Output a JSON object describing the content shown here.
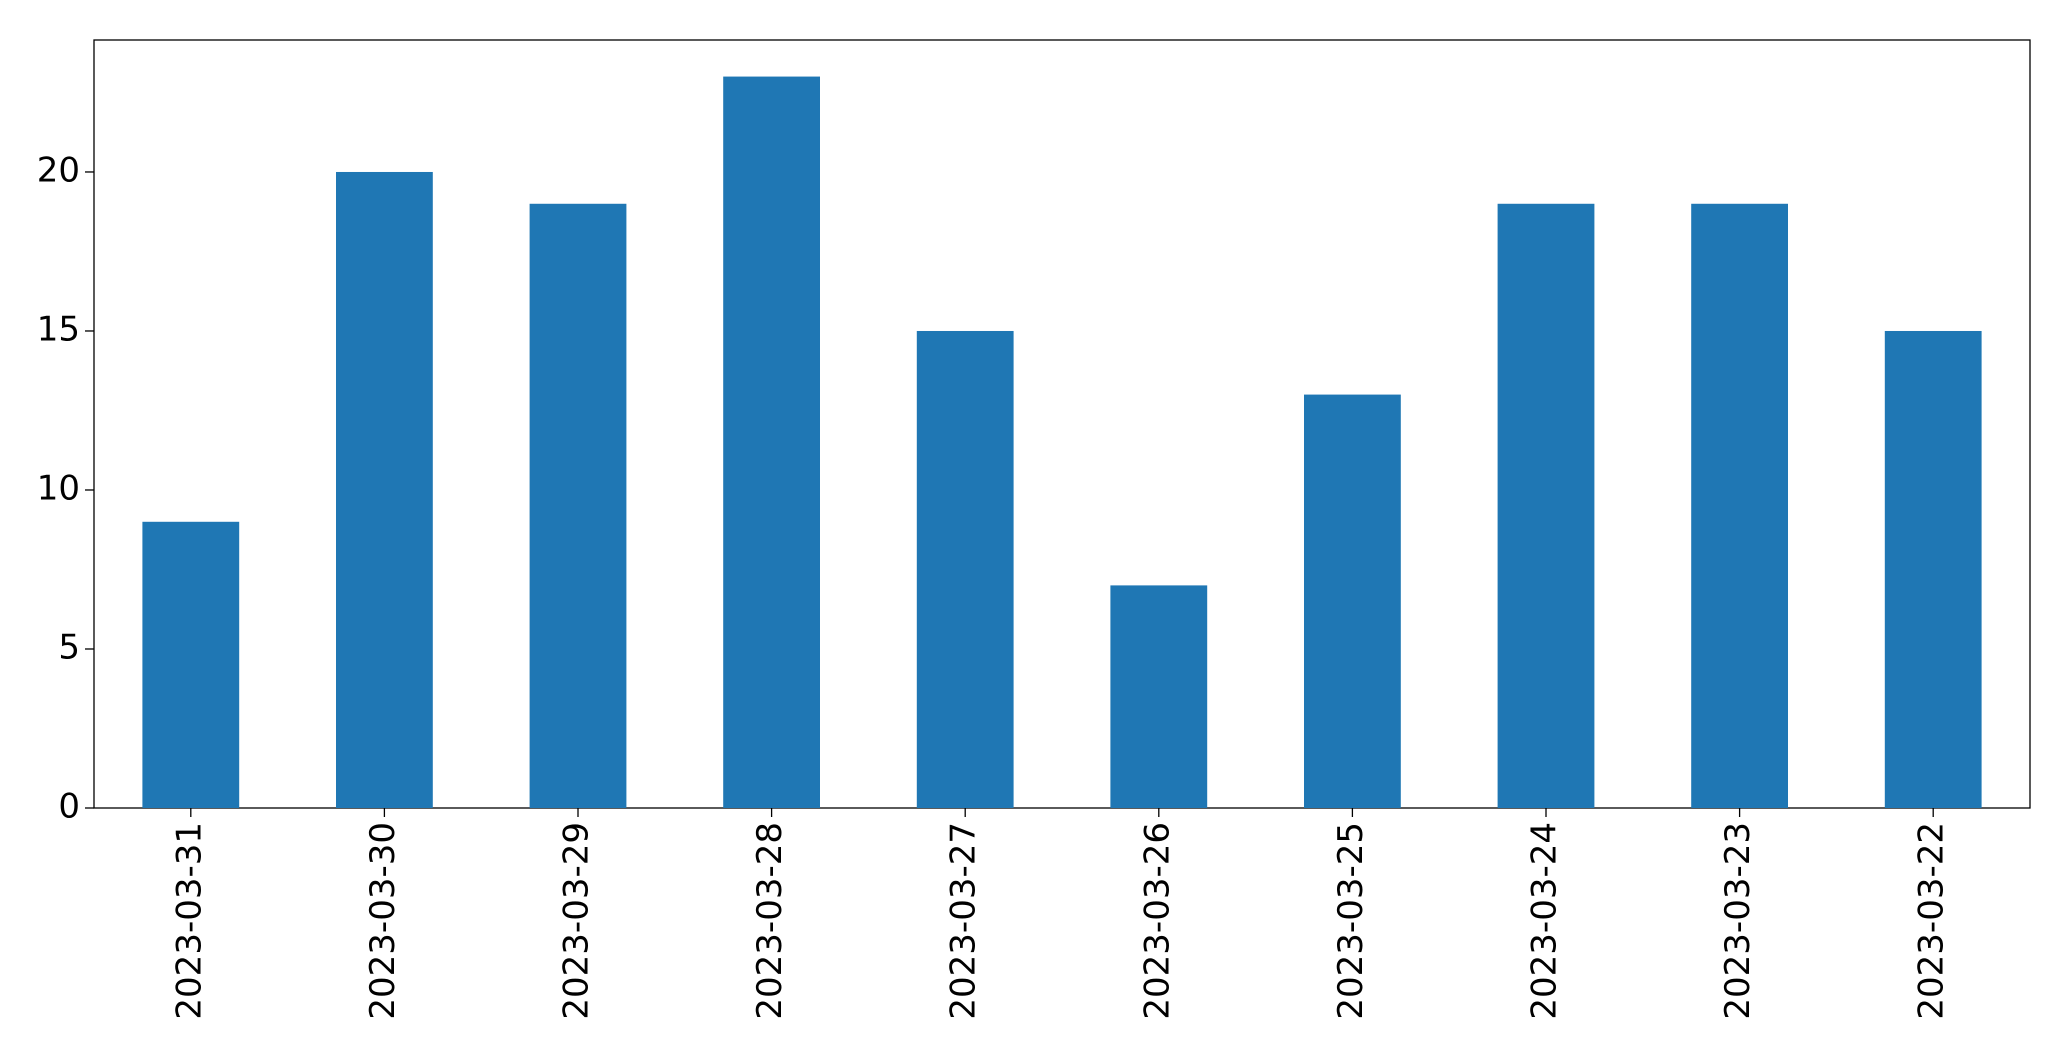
{
  "chart_data": {
    "type": "bar",
    "categories": [
      "2023-03-31",
      "2023-03-30",
      "2023-03-29",
      "2023-03-28",
      "2023-03-27",
      "2023-03-26",
      "2023-03-25",
      "2023-03-24",
      "2023-03-23",
      "2023-03-22"
    ],
    "values": [
      9,
      20,
      19,
      23,
      15,
      7,
      13,
      19,
      19,
      15
    ],
    "color": "#1f77b4",
    "ylim": [
      0,
      24.15
    ],
    "yticks": [
      0,
      5,
      10,
      15,
      20
    ],
    "grid": false
  }
}
